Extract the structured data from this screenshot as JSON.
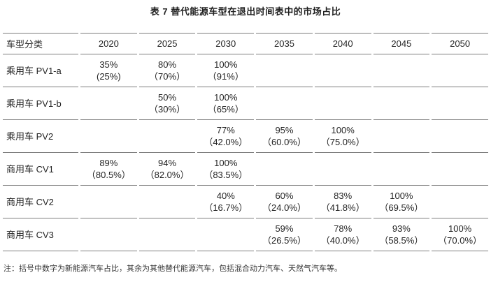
{
  "title": "表 7 替代能源车型在退出时间表中的市场占比",
  "table": {
    "columns": [
      "车型分类",
      "2020",
      "2025",
      "2030",
      "2035",
      "2040",
      "2045",
      "2050"
    ],
    "rows": [
      {
        "label": "乘用车 PV1-a",
        "cells": [
          {
            "main": "35%",
            "sub": "(25%)"
          },
          {
            "main": "80%",
            "sub": "（70%）"
          },
          {
            "main": "100%",
            "sub": "（91%）"
          },
          null,
          null,
          null,
          null
        ]
      },
      {
        "label": "乘用车 PV1-b",
        "cells": [
          null,
          {
            "main": "50%",
            "sub": "（30%）"
          },
          {
            "main": "100%",
            "sub": "（65%）"
          },
          null,
          null,
          null,
          null
        ]
      },
      {
        "label": "乘用车 PV2",
        "cells": [
          null,
          null,
          {
            "main": "77%",
            "sub": "（42.0%）"
          },
          {
            "main": "95%",
            "sub": "（60.0%）"
          },
          {
            "main": "100%",
            "sub": "（75.0%）"
          },
          null,
          null
        ]
      },
      {
        "label": "商用车 CV1",
        "cells": [
          {
            "main": "89%",
            "sub": "（80.5%）"
          },
          {
            "main": "94%",
            "sub": "（82.0%）"
          },
          {
            "main": "100%",
            "sub": "（83.5%）"
          },
          null,
          null,
          null,
          null
        ]
      },
      {
        "label": "商用车 CV2",
        "cells": [
          null,
          null,
          {
            "main": "40%",
            "sub": "（16.7%）"
          },
          {
            "main": "60%",
            "sub": "（24.0%）"
          },
          {
            "main": "83%",
            "sub": "（41.8%）"
          },
          {
            "main": "100%",
            "sub": "（69.5%）"
          },
          null
        ]
      },
      {
        "label": "商用车 CV3",
        "cells": [
          null,
          null,
          null,
          {
            "main": "59%",
            "sub": "（26.5%）"
          },
          {
            "main": "78%",
            "sub": "（40.0%）"
          },
          {
            "main": "93%",
            "sub": "（58.5%）"
          },
          {
            "main": "100%",
            "sub": "（70.0%）"
          }
        ]
      }
    ]
  },
  "note": "注：括号中数字为新能源汽车占比，其余为其他替代能源汽车，包括混合动力汽车、天然气汽车等。",
  "colors": {
    "text": "#242424",
    "rule": "#7d7d7d"
  }
}
